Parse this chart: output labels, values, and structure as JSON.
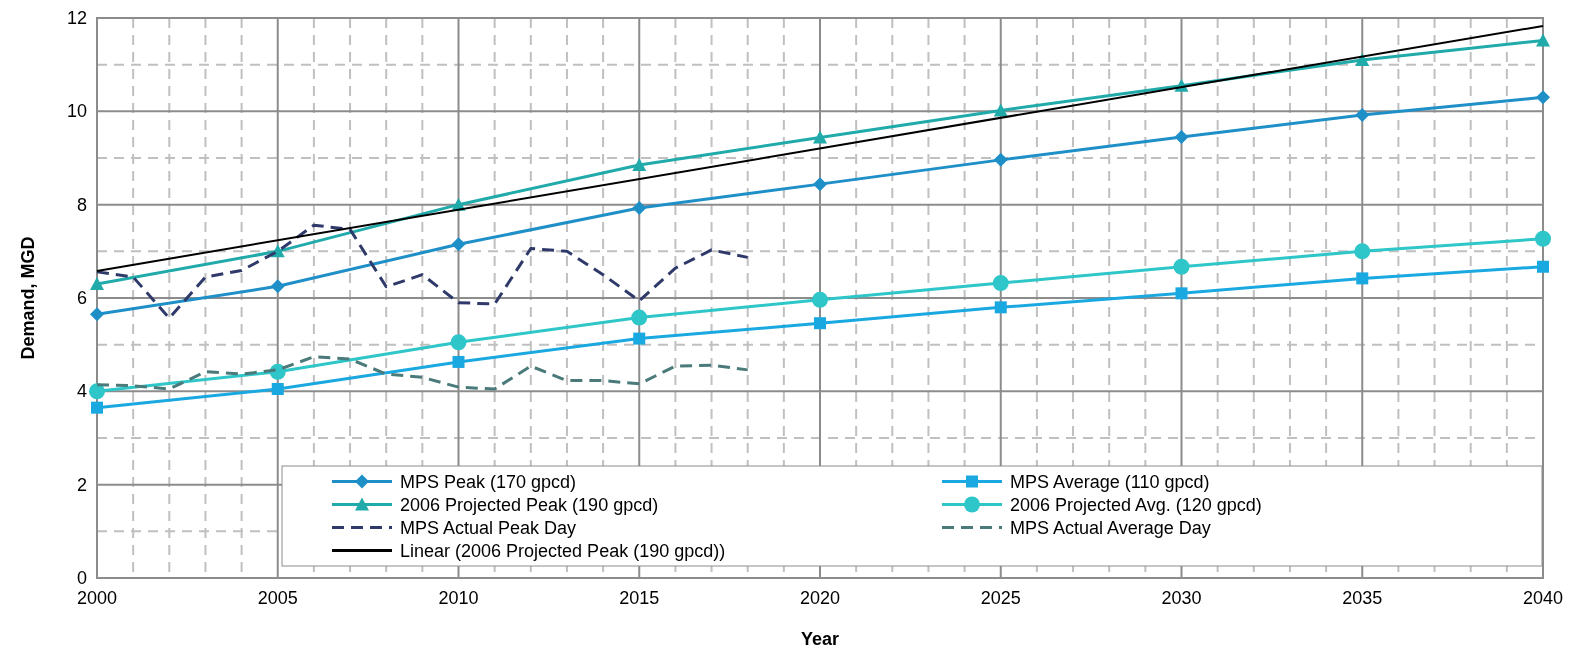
{
  "chart_data": {
    "type": "line",
    "xlabel": "Year",
    "ylabel": "Demand, MGD",
    "xlim": [
      2000,
      2040
    ],
    "ylim": [
      0,
      12
    ],
    "xticks": [
      2000,
      2005,
      2010,
      2015,
      2020,
      2025,
      2030,
      2035,
      2040
    ],
    "yticks": [
      0,
      2,
      4,
      6,
      8,
      10,
      12
    ],
    "grid": true,
    "legend": "bottom",
    "series": [
      {
        "name": "MPS Peak (170 gpcd)",
        "color": "#1f8fc8",
        "marker": "diamond",
        "line_style": "solid",
        "x": [
          2000,
          2005,
          2010,
          2015,
          2020,
          2025,
          2030,
          2035,
          2040
        ],
        "values": [
          5.65,
          6.25,
          7.15,
          7.93,
          8.44,
          8.96,
          9.45,
          9.92,
          10.3
        ]
      },
      {
        "name": "MPS Average (110 gpcd)",
        "color": "#1aa8e0",
        "marker": "square",
        "line_style": "solid",
        "x": [
          2000,
          2005,
          2010,
          2015,
          2020,
          2025,
          2030,
          2035,
          2040
        ],
        "values": [
          3.65,
          4.05,
          4.63,
          5.13,
          5.46,
          5.8,
          6.1,
          6.42,
          6.67
        ]
      },
      {
        "name": "2006 Projected Peak (190 gpcd)",
        "color": "#20aaaa",
        "marker": "triangle",
        "line_style": "solid",
        "x": [
          2000,
          2005,
          2010,
          2015,
          2020,
          2025,
          2030,
          2035,
          2040
        ],
        "values": [
          6.3,
          7.0,
          8.0,
          8.85,
          9.44,
          10.02,
          10.55,
          11.1,
          11.52
        ]
      },
      {
        "name": "2006 Projected Avg. (120 gpcd)",
        "color": "#2ec6c8",
        "marker": "circle",
        "line_style": "solid",
        "x": [
          2000,
          2005,
          2010,
          2015,
          2020,
          2025,
          2030,
          2035,
          2040
        ],
        "values": [
          4.0,
          4.42,
          5.05,
          5.58,
          5.96,
          6.32,
          6.67,
          7.0,
          7.27
        ]
      },
      {
        "name": "MPS Actual Peak Day",
        "color": "#2f3a6a",
        "marker": "none",
        "line_style": "dashed",
        "x": [
          2000,
          2001,
          2002,
          2003,
          2004,
          2005,
          2006,
          2007,
          2008,
          2009,
          2010,
          2011,
          2012,
          2013,
          2014,
          2015,
          2016,
          2017,
          2018
        ],
        "values": [
          6.56,
          6.45,
          5.57,
          6.45,
          6.59,
          7.0,
          7.56,
          7.47,
          6.24,
          6.5,
          5.9,
          5.87,
          7.06,
          7.0,
          6.5,
          5.94,
          6.64,
          7.03,
          6.87
        ]
      },
      {
        "name": "MPS Actual Average Day",
        "color": "#4a7a7a",
        "marker": "none",
        "line_style": "dashed",
        "x": [
          2000,
          2001,
          2002,
          2003,
          2004,
          2005,
          2006,
          2007,
          2008,
          2009,
          2010,
          2011,
          2012,
          2013,
          2014,
          2015,
          2016,
          2017,
          2018
        ],
        "values": [
          4.14,
          4.12,
          4.05,
          4.42,
          4.37,
          4.46,
          4.74,
          4.69,
          4.37,
          4.3,
          4.09,
          4.05,
          4.54,
          4.23,
          4.23,
          4.16,
          4.54,
          4.56,
          4.46
        ]
      },
      {
        "name": "Linear (2006 Projected Peak (190 gpcd))",
        "color": "#000000",
        "marker": "none",
        "line_style": "solid",
        "x": [
          2000,
          2040
        ],
        "values": [
          6.58,
          11.83
        ]
      }
    ]
  }
}
